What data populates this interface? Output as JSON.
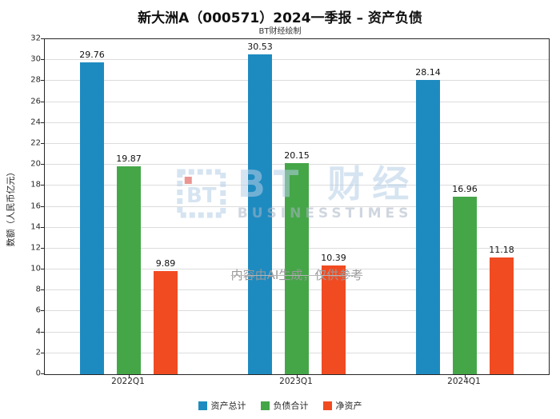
{
  "title": "新大洲A（000571）2024一季报 – 资产负债",
  "subtitle": "BT财经绘制",
  "watermark": {
    "brand_bt": "BT",
    "brand_cn": "财经",
    "brand_en": "BUSINESSTIMES",
    "disclaimer": "内容由AI生成，仅供参考"
  },
  "chart_data": {
    "type": "bar",
    "title": "新大洲A（000571）2024一季报 – 资产负债",
    "subtitle": "BT财经绘制",
    "categories": [
      "2022Q1",
      "2023Q1",
      "2024Q1"
    ],
    "series": [
      {
        "name": "资产总计",
        "color": "#1e8bc0",
        "values": [
          29.76,
          30.53,
          28.14
        ]
      },
      {
        "name": "负债合计",
        "color": "#45a648",
        "values": [
          19.87,
          20.15,
          16.96
        ]
      },
      {
        "name": "净资产",
        "color": "#f14b22",
        "values": [
          9.89,
          10.39,
          11.18
        ]
      }
    ],
    "xlabel": "",
    "ylabel": "数额（人民币亿元）",
    "ylim": [
      0,
      32
    ],
    "ytick_step": 2,
    "grid": true,
    "legend_position": "bottom"
  }
}
